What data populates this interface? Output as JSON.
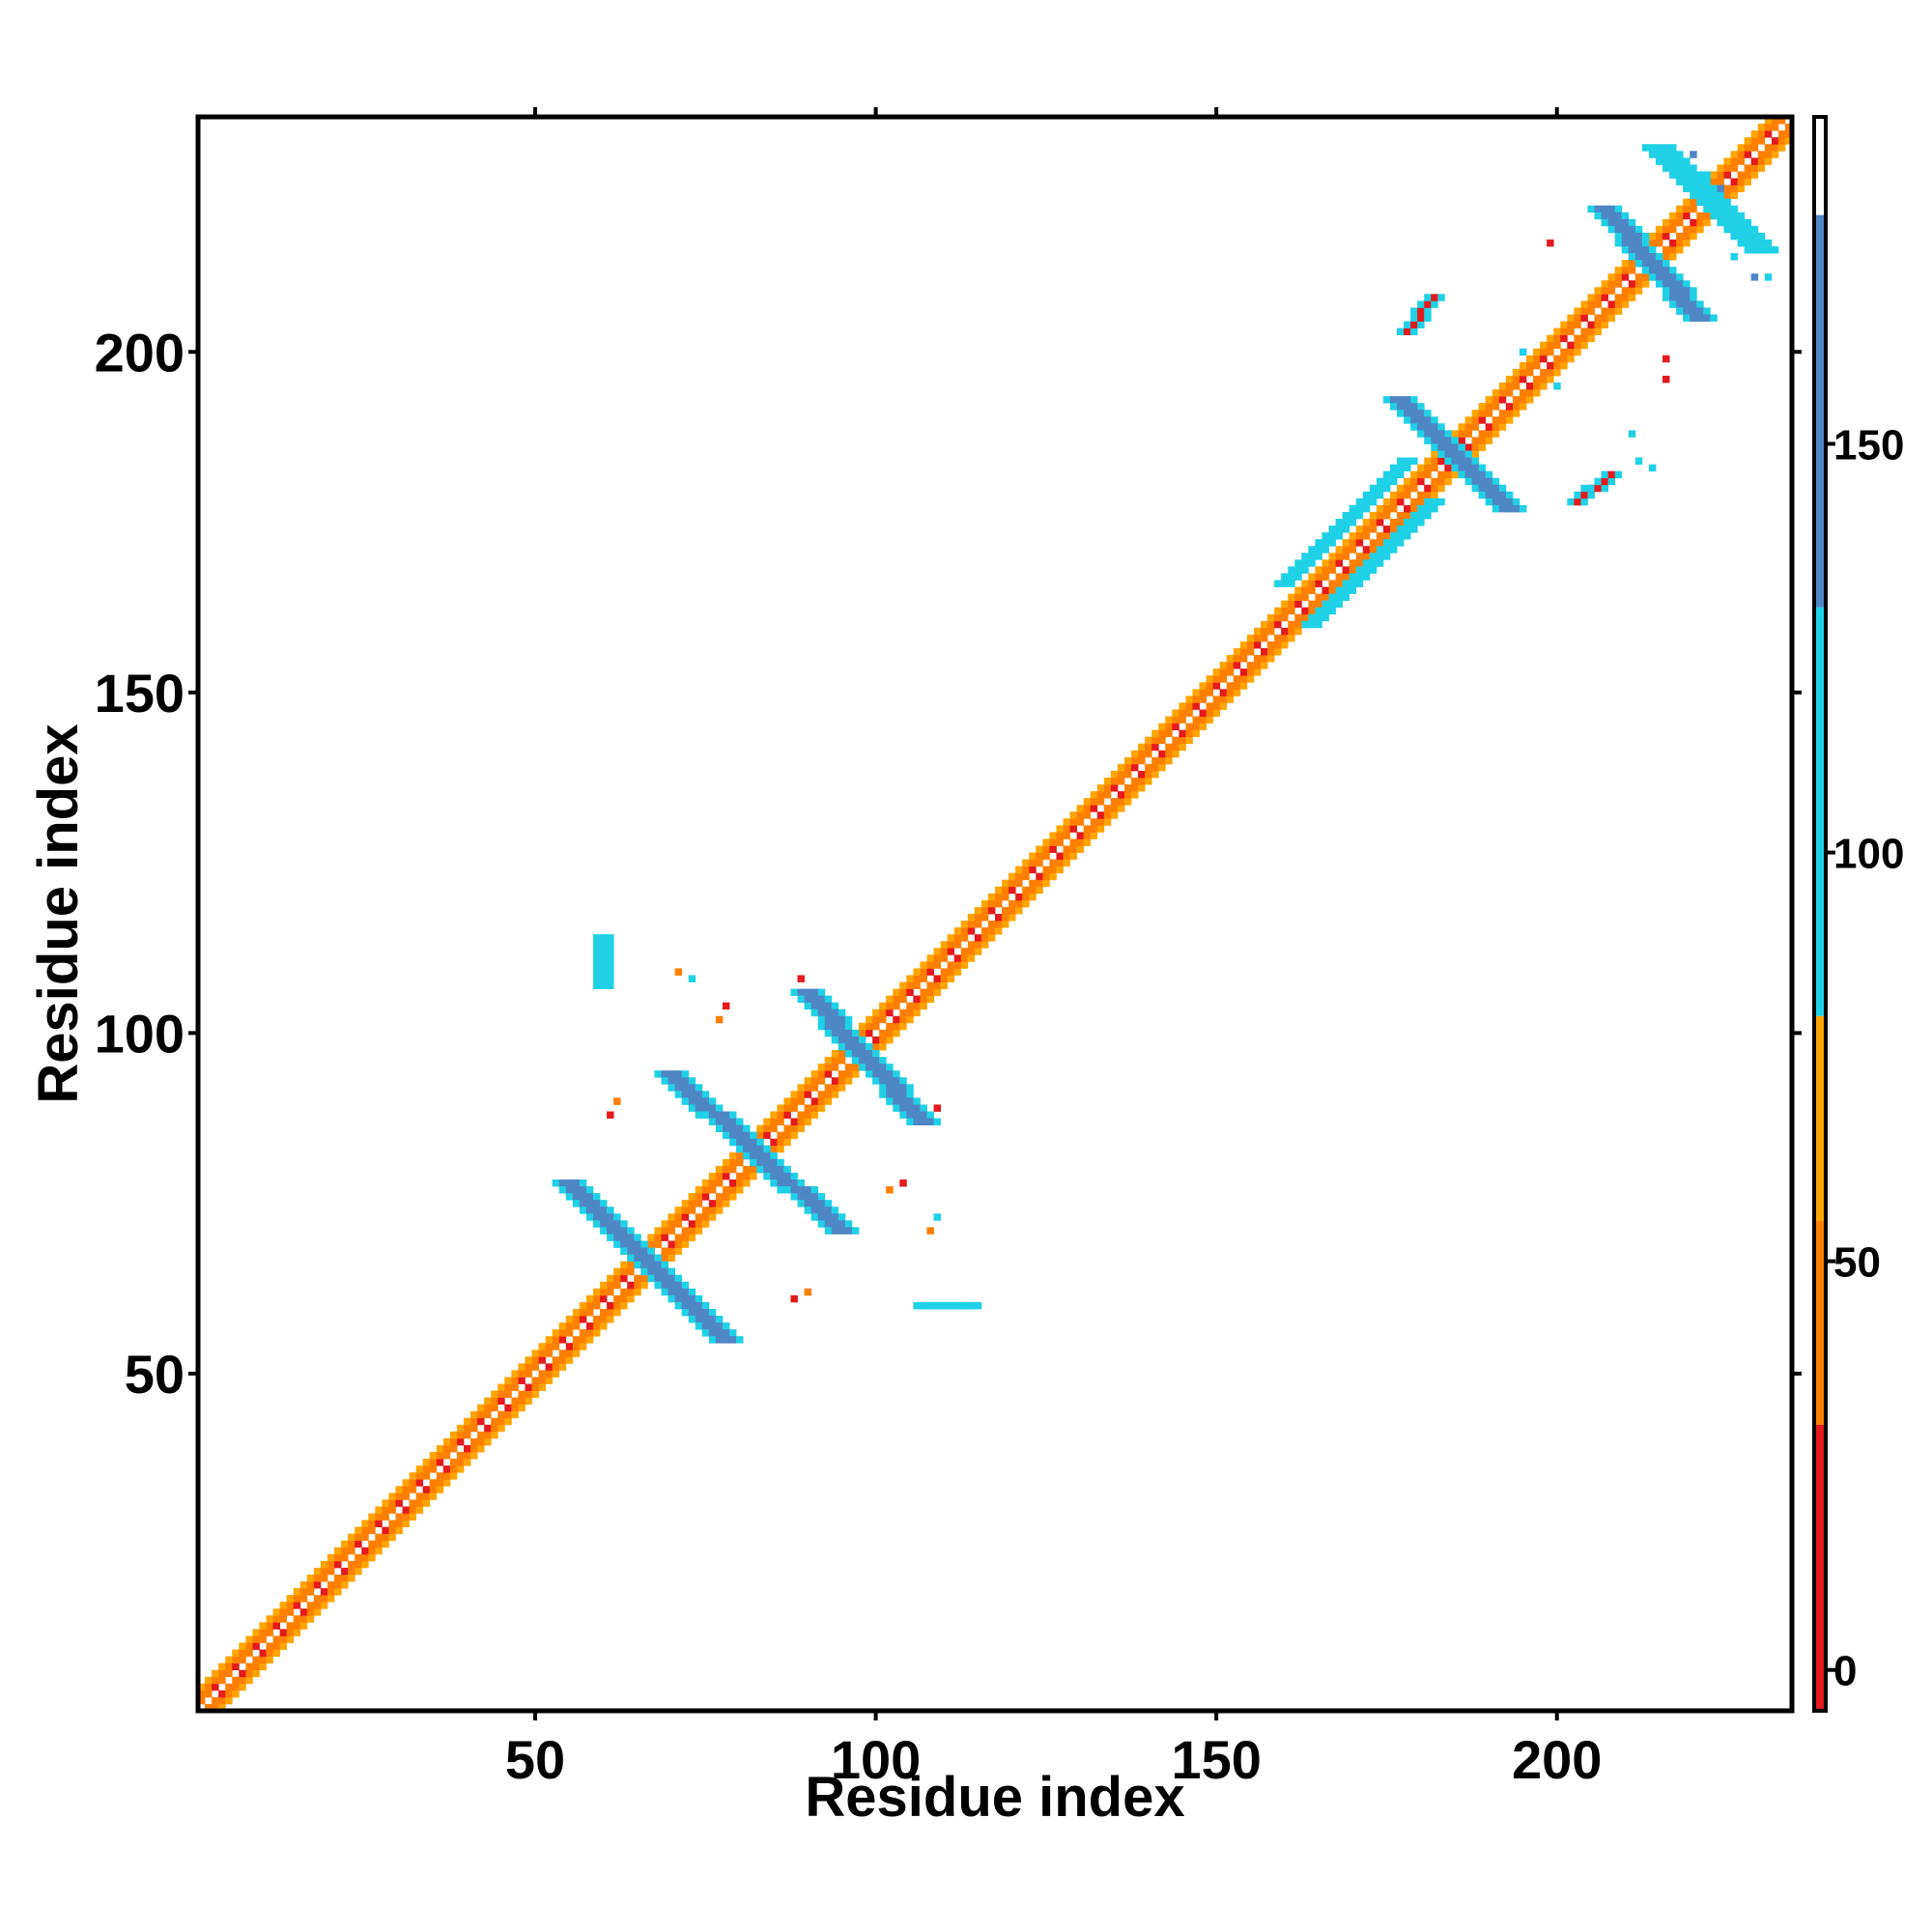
{
  "chart_data": {
    "type": "heatmap",
    "xlabel": "Residue index",
    "ylabel": "Residue index",
    "xlim": [
      1,
      234
    ],
    "ylim": [
      1,
      234
    ],
    "xticks": [
      50,
      100,
      150,
      200
    ],
    "yticks": [
      50,
      100,
      150,
      200
    ],
    "xtick_labels": [
      "50",
      "100",
      "150",
      "200"
    ],
    "ytick_labels": [
      "50",
      "100",
      "150",
      "200"
    ],
    "grid": false,
    "colorbar": {
      "range": [
        -5,
        190
      ],
      "ticks": [
        0,
        50,
        100,
        150
      ],
      "tick_labels": [
        "0",
        "50",
        "100",
        "150"
      ],
      "bands": [
        {
          "from": -5,
          "to": 30,
          "color": "#e41a1c"
        },
        {
          "from": 30,
          "to": 55,
          "color": "#ff7f00"
        },
        {
          "from": 55,
          "to": 80,
          "color": "#ffa500"
        },
        {
          "from": 80,
          "to": 130,
          "color": "#1fd1e6"
        },
        {
          "from": 130,
          "to": 178,
          "color": "#4f86c6"
        },
        {
          "from": 178,
          "to": 190,
          "color": "#ffffff"
        }
      ]
    },
    "colors": {
      "red": "#e41a1c",
      "orange": "#ff7f00",
      "light_orange": "#ffa500",
      "cyan": "#1fd1e6",
      "blue": "#4f86c6"
    },
    "diagonal_band": {
      "from": 1,
      "to": 234,
      "offsets": [
        {
          "d": 1,
          "color": "red_orange"
        },
        {
          "d": 2,
          "color": "orange"
        },
        {
          "d": 3,
          "color": "light_orange"
        }
      ]
    },
    "antiparallel_segments": [
      {
        "x0": 55,
        "y0": 78,
        "x1": 78,
        "y1": 55,
        "color": "blue"
      },
      {
        "x0": 70,
        "y0": 94,
        "x1": 95,
        "y1": 71,
        "color": "blue"
      },
      {
        "x0": 90,
        "y0": 106,
        "x1": 107,
        "y1": 87,
        "color": "blue"
      },
      {
        "x0": 177,
        "y0": 193,
        "x1": 193,
        "y1": 177,
        "color": "blue"
      },
      {
        "x0": 207,
        "y0": 221,
        "x1": 221,
        "y1": 205,
        "color": "blue"
      },
      {
        "x0": 215,
        "y0": 230,
        "x1": 230,
        "y1": 215,
        "color": "cyan"
      }
    ],
    "parallel_segments": [
      {
        "x0": 160,
        "y0": 166,
        "x1": 178,
        "y1": 184,
        "color": "cyan"
      },
      {
        "x0": 164,
        "y0": 160,
        "x1": 182,
        "y1": 178,
        "color": "cyan"
      },
      {
        "x0": 178,
        "y0": 203,
        "x1": 182,
        "y1": 208,
        "color": "red"
      },
      {
        "x0": 203,
        "y0": 178,
        "x1": 208,
        "y1": 182,
        "color": "red"
      },
      {
        "x0": 107,
        "y0": 60,
        "x1": 114,
        "y1": 60,
        "color": "cyan"
      },
      {
        "x0": 60,
        "y0": 107,
        "x1": 60,
        "y1": 114,
        "color": "cyan"
      }
    ],
    "scattered_contacts": [
      {
        "x": 61,
        "y": 88,
        "color": "red"
      },
      {
        "x": 62,
        "y": 90,
        "color": "orange"
      },
      {
        "x": 88,
        "y": 61,
        "color": "red"
      },
      {
        "x": 90,
        "y": 62,
        "color": "orange"
      },
      {
        "x": 71,
        "y": 109,
        "color": "orange"
      },
      {
        "x": 73,
        "y": 108,
        "color": "cyan"
      },
      {
        "x": 77,
        "y": 102,
        "color": "orange"
      },
      {
        "x": 78,
        "y": 104,
        "color": "red"
      },
      {
        "x": 89,
        "y": 108,
        "color": "red"
      },
      {
        "x": 109,
        "y": 89,
        "color": "red"
      },
      {
        "x": 102,
        "y": 77,
        "color": "orange"
      },
      {
        "x": 104,
        "y": 78,
        "color": "red"
      },
      {
        "x": 108,
        "y": 71,
        "color": "orange"
      },
      {
        "x": 109,
        "y": 73,
        "color": "cyan"
      },
      {
        "x": 195,
        "y": 200,
        "color": "cyan"
      },
      {
        "x": 200,
        "y": 195,
        "color": "cyan"
      },
      {
        "x": 199,
        "y": 216,
        "color": "red"
      },
      {
        "x": 216,
        "y": 199,
        "color": "red"
      },
      {
        "x": 211,
        "y": 188,
        "color": "cyan"
      },
      {
        "x": 212,
        "y": 184,
        "color": "cyan"
      },
      {
        "x": 214,
        "y": 183,
        "color": "cyan"
      },
      {
        "x": 216,
        "y": 196,
        "color": "red"
      },
      {
        "x": 220,
        "y": 229,
        "color": "blue"
      },
      {
        "x": 222,
        "y": 226,
        "color": "cyan"
      },
      {
        "x": 224,
        "y": 224,
        "color": "blue"
      },
      {
        "x": 226,
        "y": 214,
        "color": "cyan"
      },
      {
        "x": 229,
        "y": 211,
        "color": "blue"
      },
      {
        "x": 231,
        "y": 211,
        "color": "cyan"
      }
    ]
  }
}
